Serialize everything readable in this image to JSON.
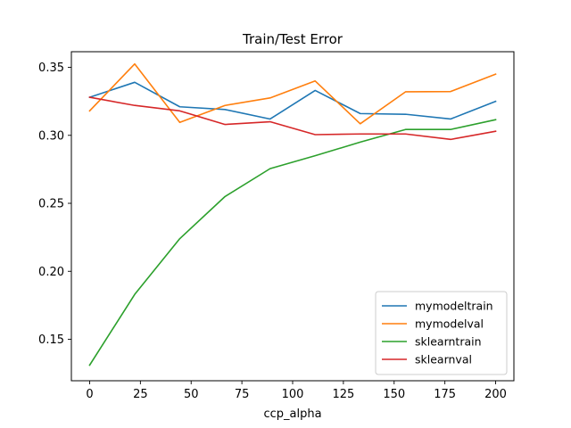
{
  "chart_data": {
    "type": "line",
    "title": "Train/Test Error",
    "xlabel": "ccp_alpha",
    "ylabel": "",
    "xlim": [
      -9,
      209
    ],
    "ylim": [
      0.1195,
      0.3615
    ],
    "xticks": [
      0,
      25,
      50,
      75,
      100,
      125,
      150,
      175,
      200
    ],
    "xtick_labels": [
      "0",
      "25",
      "50",
      "75",
      "100",
      "125",
      "150",
      "175",
      "200"
    ],
    "yticks": [
      0.15,
      0.2,
      0.25,
      0.3,
      0.35
    ],
    "ytick_labels": [
      "0.15",
      "0.20",
      "0.25",
      "0.30",
      "0.35"
    ],
    "grid": false,
    "legend_position": "lower-right",
    "x": [
      0,
      22.2,
      44.4,
      66.7,
      88.9,
      111.1,
      133.3,
      155.6,
      177.8,
      200
    ],
    "series": [
      {
        "name": "mymodeltrain",
        "color": "#1f77b4",
        "values": [
          0.328,
          0.339,
          0.321,
          0.319,
          0.312,
          0.333,
          0.316,
          0.3155,
          0.312,
          0.325
        ]
      },
      {
        "name": "mymodelval",
        "color": "#ff7f0e",
        "values": [
          0.318,
          0.3525,
          0.3095,
          0.322,
          0.3275,
          0.34,
          0.3085,
          0.332,
          0.3322,
          0.345
        ]
      },
      {
        "name": "sklearntrain",
        "color": "#2ca02c",
        "values": [
          0.131,
          0.183,
          0.224,
          0.255,
          0.2755,
          0.285,
          0.295,
          0.3043,
          0.3043,
          0.3115
        ]
      },
      {
        "name": "sklearnval",
        "color": "#d62728",
        "values": [
          0.328,
          0.322,
          0.318,
          0.308,
          0.31,
          0.3005,
          0.301,
          0.301,
          0.297,
          0.303
        ]
      }
    ]
  }
}
